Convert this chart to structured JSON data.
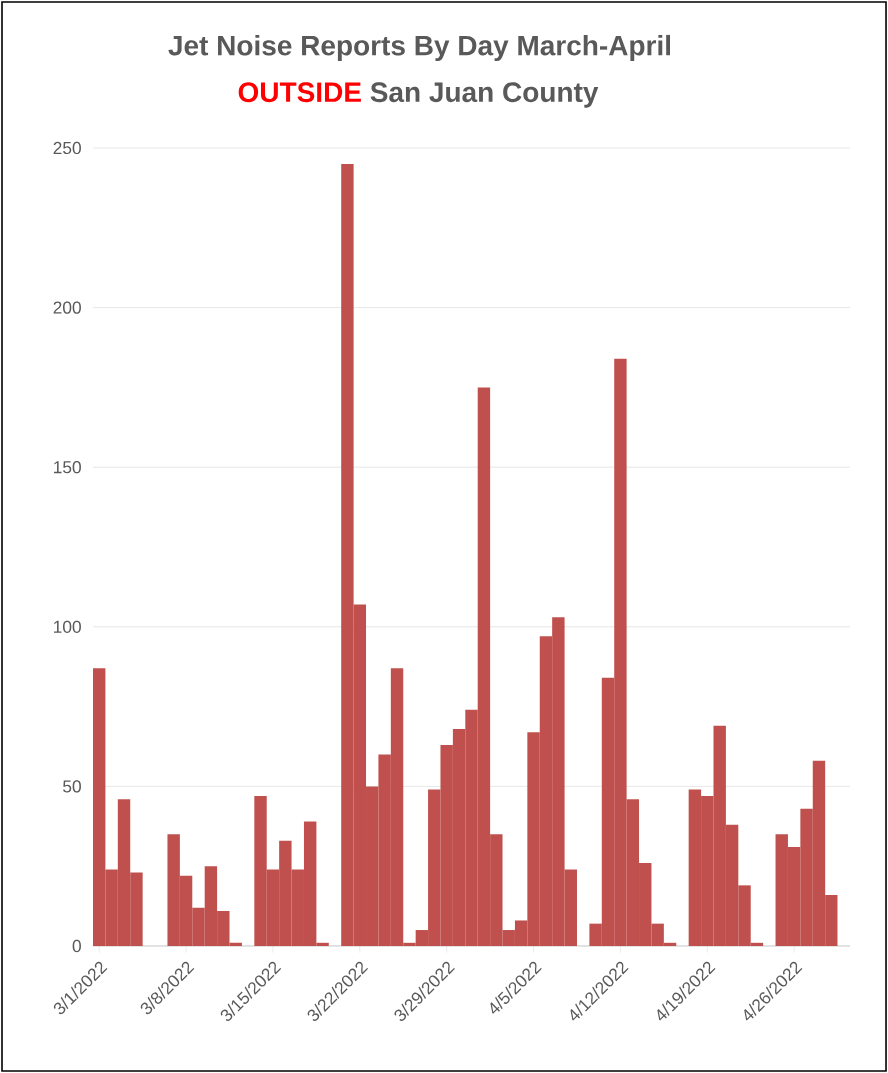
{
  "chart_data": {
    "type": "bar",
    "title": "Jet Noise Reports   By Day     March-April",
    "subtitle": "San Juan County",
    "annotations": [
      "OUTSIDE"
    ],
    "categories": [
      "3/1/2022",
      null,
      null,
      null,
      null,
      null,
      null,
      "3/8/2022",
      null,
      null,
      null,
      null,
      null,
      null,
      "3/15/2022",
      null,
      null,
      null,
      null,
      null,
      null,
      "3/22/2022",
      null,
      null,
      null,
      null,
      null,
      null,
      "3/29/2022",
      null,
      null,
      null,
      null,
      null,
      null,
      "4/5/2022",
      null,
      null,
      null,
      null,
      null,
      null,
      "4/12/2022",
      null,
      null,
      null,
      null,
      null,
      null,
      "4/19/2022",
      null,
      null,
      null,
      null,
      null,
      null,
      "4/26/2022",
      null,
      null,
      null,
      null
    ],
    "values": [
      87,
      24,
      46,
      23,
      null,
      null,
      35,
      22,
      12,
      25,
      11,
      1,
      null,
      47,
      24,
      33,
      24,
      39,
      1,
      null,
      245,
      107,
      50,
      60,
      87,
      1,
      5,
      49,
      63,
      68,
      74,
      175,
      35,
      5,
      8,
      67,
      97,
      103,
      24,
      null,
      7,
      84,
      184,
      46,
      26,
      7,
      1,
      null,
      49,
      47,
      69,
      38,
      19,
      1,
      null,
      35,
      31,
      43,
      58,
      16,
      null
    ],
    "color": "#c0504d",
    "ylim": [
      0,
      250
    ],
    "yticks": [
      0,
      50,
      100,
      150,
      200,
      250
    ],
    "grid": "y"
  }
}
